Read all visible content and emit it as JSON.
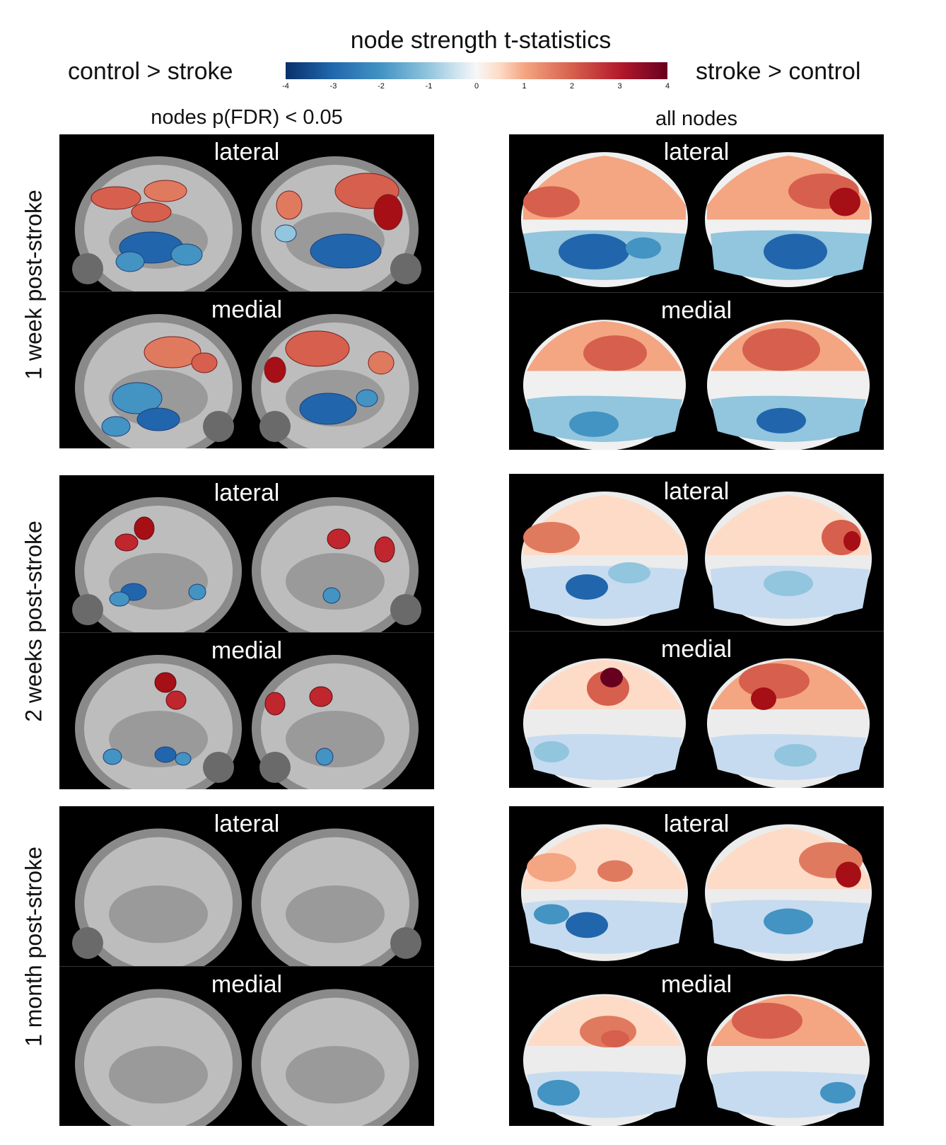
{
  "colorbar": {
    "title": "node strength t-statistics",
    "left_label": "control > stroke",
    "right_label": "stroke > control",
    "ticks": [
      "-4",
      "-3",
      "-2",
      "-1",
      "0",
      "1",
      "2",
      "3",
      "4"
    ],
    "range": [
      -4,
      4
    ]
  },
  "columns": {
    "left_header": "nodes p(FDR) < 0.05",
    "right_header": "all nodes"
  },
  "rows": [
    {
      "label": "1 week post-stroke"
    },
    {
      "label": "2 weeks post-stroke"
    },
    {
      "label": "1 month post-stroke"
    }
  ],
  "panels": {
    "r1_left_lateral": "lateral",
    "r1_left_medial": "medial",
    "r1_right_lateral": "lateral",
    "r1_right_medial": "medial",
    "r2_left_lateral": "lateral",
    "r2_left_medial": "medial",
    "r2_right_lateral": "lateral",
    "r2_right_medial": "medial",
    "r3_left_lateral": "lateral",
    "r3_left_medial": "medial",
    "r3_right_lateral": "lateral",
    "r3_right_medial": "medial"
  },
  "colors": {
    "strong_red": "#a50f15",
    "red": "#d6604d",
    "light_red": "#f4a582",
    "white": "#f0f0f0",
    "light_blue": "#92c5de",
    "blue": "#4393c3",
    "strong_blue": "#2166ac"
  }
}
